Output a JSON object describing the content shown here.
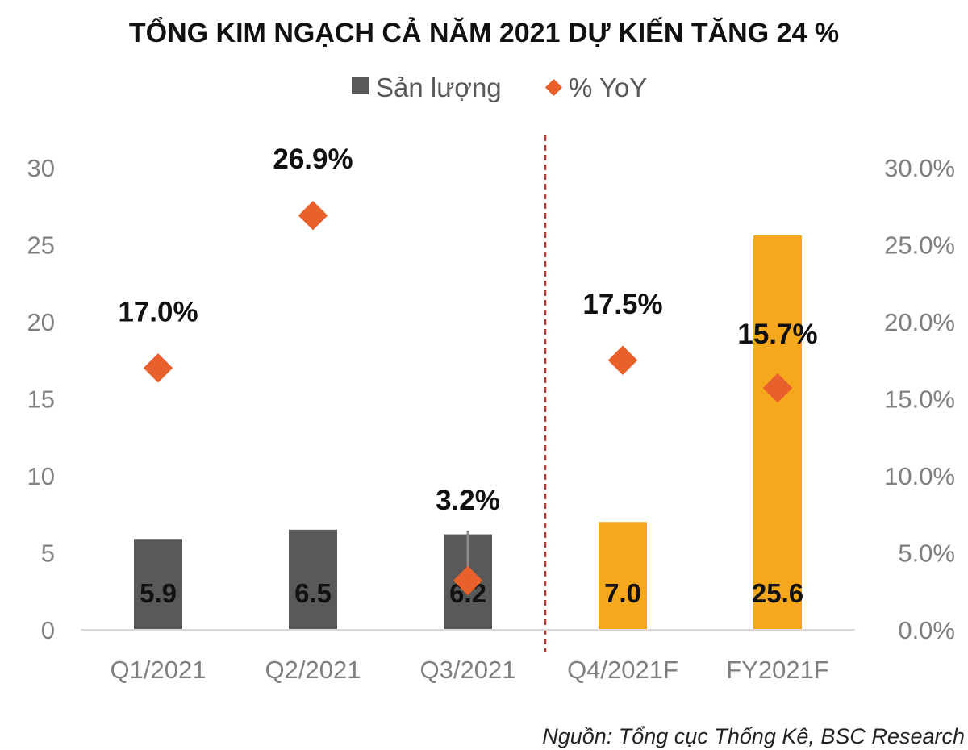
{
  "chart_data": {
    "type": "bar",
    "title": "TỔNG KIM NGẠCH CẢ NĂM 2021 DỰ KIẾN TĂNG 24 %",
    "categories": [
      "Q1/2021",
      "Q2/2021",
      "Q3/2021",
      "Q4/2021F",
      "FY2021F"
    ],
    "series": [
      {
        "name": "Sản lượng",
        "kind": "bar",
        "axis": "left",
        "values": [
          5.9,
          6.5,
          6.2,
          7.0,
          25.6
        ],
        "labels": [
          "5.9",
          "6.5",
          "6.2",
          "7.0",
          "25.6"
        ],
        "colors": [
          "#595959",
          "#595959",
          "#595959",
          "#f5a81c",
          "#f5a81c"
        ]
      },
      {
        "name": "% YoY",
        "kind": "marker",
        "marker": "diamond",
        "axis": "right",
        "values": [
          17.0,
          26.9,
          3.2,
          17.5,
          15.7
        ],
        "labels": [
          "17.0%",
          "26.9%",
          "3.2%",
          "17.5%",
          "15.7%"
        ],
        "color": "#e8602c"
      }
    ],
    "y_left": {
      "ylim": [
        0,
        30
      ],
      "ticks": [
        0,
        5,
        10,
        15,
        20,
        25,
        30
      ],
      "tick_labels": [
        "0",
        "5",
        "10",
        "15",
        "20",
        "25",
        "30"
      ]
    },
    "y_right": {
      "ylim": [
        0,
        30
      ],
      "ticks": [
        0,
        5,
        10,
        15,
        20,
        25,
        30
      ],
      "tick_labels": [
        "0.0%",
        "5.0%",
        "10.0%",
        "15.0%",
        "20.0%",
        "25.0%",
        "30.0%"
      ]
    },
    "forecast_divider": {
      "after_category": "Q3/2021",
      "color": "#b03a2e",
      "style": "dashed"
    },
    "grid": false,
    "legend_position": "top-center"
  },
  "source": "Nguồn: Tổng cục Thống Kê, BSC Research"
}
